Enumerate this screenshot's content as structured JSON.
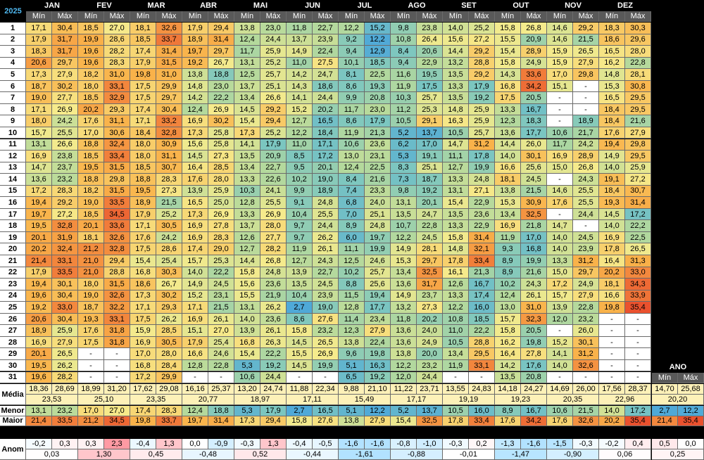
{
  "header": {
    "year": "2025",
    "months": [
      "JAN",
      "FEV",
      "MAR",
      "ABR",
      "MAI",
      "JUN",
      "JUL",
      "AGO",
      "SET",
      "OUT",
      "NOV",
      "DEZ"
    ],
    "sub": [
      "Mín",
      "Máx"
    ],
    "ano": "ANO"
  },
  "days": [
    "1",
    "2",
    "3",
    "4",
    "5",
    "6",
    "7",
    "8",
    "9",
    "10",
    "11",
    "12",
    "13",
    "14",
    "15",
    "16",
    "17",
    "18",
    "19",
    "20",
    "21",
    "22",
    "23",
    "24",
    "25",
    "26",
    "27",
    "28",
    "29",
    "30",
    "31"
  ],
  "rows": [
    [
      "17,1",
      "30,4",
      "18,5",
      "27,0",
      "18,1",
      "32,6",
      "17,9",
      "29,4",
      "13,8",
      "23,0",
      "11,8",
      "22,7",
      "12,2",
      "15,2",
      "9,8",
      "23,8",
      "14,0",
      "25,2",
      "15,8",
      "26,8",
      "14,6",
      "29,2",
      "18,3",
      "30,3"
    ],
    [
      "17,9",
      "31,7",
      "19,9",
      "28,6",
      "18,5",
      "33,7",
      "18,9",
      "31,4",
      "12,4",
      "24,4",
      "13,7",
      "23,9",
      "9,2",
      "12,2",
      "10,8",
      "26,4",
      "15,6",
      "27,2",
      "15,5",
      "20,9",
      "14,6",
      "21,5",
      "18,6",
      "29,6"
    ],
    [
      "18,3",
      "31,7",
      "19,6",
      "28,2",
      "17,4",
      "31,4",
      "19,7",
      "29,7",
      "11,7",
      "25,9",
      "14,9",
      "22,4",
      "9,4",
      "12,9",
      "8,4",
      "20,6",
      "14,4",
      "29,2",
      "15,4",
      "28,9",
      "15,9",
      "26,5",
      "16,5",
      "28,0"
    ],
    [
      "20,6",
      "29,7",
      "19,6",
      "28,3",
      "17,9",
      "31,5",
      "19,2",
      "26,7",
      "13,1",
      "25,2",
      "11,0",
      "27,5",
      "10,1",
      "18,5",
      "9,4",
      "22,9",
      "13,2",
      "28,8",
      "15,8",
      "24,9",
      "15,9",
      "27,9",
      "16,2",
      "22,8"
    ],
    [
      "17,3",
      "27,9",
      "18,2",
      "31,0",
      "19,8",
      "31,0",
      "13,8",
      "18,8",
      "12,5",
      "25,7",
      "14,2",
      "24,7",
      "8,1",
      "22,5",
      "11,6",
      "19,5",
      "13,5",
      "29,2",
      "14,3",
      "33,6",
      "17,0",
      "29,8",
      "14,8",
      "28,1"
    ],
    [
      "18,7",
      "30,2",
      "18,0",
      "33,1",
      "17,5",
      "29,9",
      "14,8",
      "23,0",
      "13,7",
      "25,1",
      "14,3",
      "18,6",
      "8,6",
      "19,3",
      "11,9",
      "17,5",
      "13,3",
      "17,9",
      "16,8",
      "34,2",
      "15,1",
      "-",
      "15,3",
      "30,8"
    ],
    [
      "19,0",
      "27,7",
      "18,5",
      "32,9",
      "17,5",
      "29,7",
      "14,2",
      "22,2",
      "13,4",
      "26,6",
      "14,1",
      "24,4",
      "9,9",
      "20,8",
      "10,3",
      "25,7",
      "13,5",
      "19,2",
      "17,5",
      "20,5",
      "-",
      "-",
      "16,5",
      "29,5"
    ],
    [
      "17,1",
      "26,9",
      "20,2",
      "29,3",
      "17,4",
      "30,4",
      "12,4",
      "26,9",
      "14,5",
      "29,2",
      "15,2",
      "20,2",
      "11,7",
      "23,0",
      "11,2",
      "25,3",
      "14,8",
      "25,9",
      "13,3",
      "16,7",
      "-",
      "-",
      "18,4",
      "29,5"
    ],
    [
      "18,0",
      "24,2",
      "17,6",
      "31,1",
      "17,1",
      "33,2",
      "16,9",
      "30,2",
      "15,4",
      "29,4",
      "12,7",
      "16,5",
      "8,6",
      "17,9",
      "10,5",
      "29,1",
      "16,3",
      "25,9",
      "12,3",
      "18,3",
      "-",
      "18,9",
      "18,4",
      "21,6"
    ],
    [
      "15,7",
      "25,5",
      "17,0",
      "30,6",
      "18,4",
      "32,8",
      "17,3",
      "25,8",
      "17,3",
      "25,2",
      "12,2",
      "18,4",
      "11,9",
      "21,3",
      "5,2",
      "13,7",
      "10,5",
      "25,7",
      "13,6",
      "17,7",
      "10,6",
      "21,7",
      "17,6",
      "27,9"
    ],
    [
      "13,1",
      "26,6",
      "18,8",
      "32,4",
      "18,0",
      "30,9",
      "15,6",
      "25,8",
      "14,1",
      "17,9",
      "11,0",
      "17,1",
      "10,6",
      "23,6",
      "6,2",
      "17,0",
      "14,7",
      "31,2",
      "14,4",
      "26,0",
      "11,7",
      "24,2",
      "19,4",
      "29,8"
    ],
    [
      "16,9",
      "23,8",
      "18,5",
      "33,4",
      "18,0",
      "31,1",
      "14,5",
      "27,3",
      "13,5",
      "20,9",
      "8,5",
      "17,2",
      "13,0",
      "23,1",
      "5,3",
      "19,1",
      "11,1",
      "17,8",
      "14,0",
      "30,1",
      "16,9",
      "28,9",
      "14,9",
      "29,5"
    ],
    [
      "14,7",
      "23,7",
      "19,5",
      "31,5",
      "18,5",
      "30,7",
      "16,4",
      "28,5",
      "13,4",
      "22,7",
      "9,5",
      "20,1",
      "12,4",
      "22,5",
      "8,3",
      "25,1",
      "12,7",
      "19,9",
      "16,6",
      "25,6",
      "15,0",
      "26,8",
      "14,0",
      "25,9"
    ],
    [
      "13,6",
      "23,2",
      "18,8",
      "29,8",
      "18,8",
      "28,3",
      "17,6",
      "28,0",
      "13,3",
      "22,6",
      "10,2",
      "19,0",
      "8,4",
      "21,6",
      "7,3",
      "18,7",
      "13,3",
      "24,8",
      "18,1",
      "24,5",
      "-",
      "24,3",
      "19,1",
      "27,2"
    ],
    [
      "17,2",
      "28,3",
      "18,2",
      "31,5",
      "19,5",
      "27,3",
      "13,9",
      "25,9",
      "10,3",
      "24,1",
      "9,9",
      "18,9",
      "7,4",
      "23,3",
      "9,8",
      "19,2",
      "13,1",
      "27,1",
      "13,8",
      "21,5",
      "14,6",
      "25,5",
      "18,4",
      "30,7"
    ],
    [
      "19,4",
      "29,2",
      "19,0",
      "33,5",
      "18,9",
      "21,5",
      "16,5",
      "25,0",
      "12,8",
      "25,5",
      "9,1",
      "24,8",
      "6,8",
      "24,0",
      "13,1",
      "20,1",
      "15,4",
      "22,9",
      "15,3",
      "30,9",
      "17,6",
      "25,5",
      "19,3",
      "31,4"
    ],
    [
      "19,7",
      "27,2",
      "18,5",
      "34,5",
      "17,9",
      "25,2",
      "17,3",
      "26,9",
      "13,3",
      "26,9",
      "10,4",
      "25,5",
      "7,0",
      "25,1",
      "13,5",
      "24,7",
      "13,5",
      "23,6",
      "13,4",
      "32,5",
      "-",
      "24,4",
      "14,5",
      "17,2"
    ],
    [
      "19,5",
      "32,8",
      "20,1",
      "33,6",
      "17,1",
      "30,5",
      "16,9",
      "27,8",
      "13,7",
      "28,0",
      "9,7",
      "24,4",
      "8,9",
      "24,8",
      "10,7",
      "22,8",
      "13,3",
      "22,9",
      "16,9",
      "21,8",
      "14,7",
      "-",
      "14,0",
      "22,2"
    ],
    [
      "20,1",
      "31,9",
      "18,1",
      "32,6",
      "17,6",
      "24,2",
      "16,9",
      "28,3",
      "12,6",
      "27,7",
      "9,7",
      "26,2",
      "6,0",
      "19,7",
      "12,2",
      "24,5",
      "15,8",
      "31,4",
      "11,9",
      "17,0",
      "14,0",
      "24,5",
      "16,9",
      "22,5"
    ],
    [
      "20,2",
      "32,4",
      "21,2",
      "32,8",
      "17,5",
      "28,6",
      "17,4",
      "29,0",
      "12,7",
      "28,2",
      "11,9",
      "26,1",
      "11,1",
      "19,9",
      "14,9",
      "28,1",
      "14,8",
      "32,1",
      "9,3",
      "16,8",
      "14,0",
      "23,9",
      "17,8",
      "26,5"
    ],
    [
      "21,4",
      "33,1",
      "21,0",
      "29,4",
      "15,4",
      "25,4",
      "15,7",
      "25,3",
      "14,4",
      "26,8",
      "12,7",
      "24,3",
      "12,5",
      "24,6",
      "15,3",
      "29,7",
      "17,8",
      "33,4",
      "8,9",
      "19,9",
      "13,3",
      "31,2",
      "16,4",
      "31,3"
    ],
    [
      "17,9",
      "33,5",
      "21,0",
      "28,8",
      "16,8",
      "30,3",
      "14,0",
      "22,2",
      "15,8",
      "24,8",
      "13,9",
      "22,7",
      "10,2",
      "25,7",
      "13,4",
      "32,5",
      "16,1",
      "21,3",
      "8,9",
      "21,6",
      "15,0",
      "29,7",
      "20,2",
      "33,0"
    ],
    [
      "19,4",
      "30,1",
      "18,0",
      "31,5",
      "18,6",
      "26,7",
      "14,9",
      "24,5",
      "15,6",
      "23,6",
      "13,5",
      "24,5",
      "8,8",
      "25,6",
      "13,6",
      "31,7",
      "12,6",
      "16,7",
      "10,2",
      "24,3",
      "17,2",
      "24,9",
      "18,1",
      "34,3"
    ],
    [
      "19,6",
      "30,4",
      "19,0",
      "32,6",
      "17,3",
      "30,2",
      "15,2",
      "23,1",
      "15,5",
      "21,9",
      "10,4",
      "23,9",
      "11,5",
      "19,4",
      "14,9",
      "23,7",
      "13,3",
      "17,4",
      "12,4",
      "26,1",
      "15,7",
      "27,9",
      "16,6",
      "33,9"
    ],
    [
      "19,2",
      "33,0",
      "18,7",
      "32,2",
      "17,1",
      "29,3",
      "17,1",
      "21,5",
      "13,1",
      "26,2",
      "2,7",
      "19,0",
      "12,8",
      "17,7",
      "13,2",
      "27,3",
      "12,2",
      "16,0",
      "13,0",
      "31,0",
      "13,9",
      "22,8",
      "19,8",
      "35,4"
    ],
    [
      "20,6",
      "30,4",
      "19,3",
      "33,1",
      "17,5",
      "26,2",
      "16,9",
      "26,1",
      "14,0",
      "23,6",
      "8,6",
      "27,6",
      "11,4",
      "23,4",
      "11,8",
      "20,2",
      "10,8",
      "18,5",
      "15,7",
      "32,3",
      "12,0",
      "23,2",
      "-",
      "-"
    ],
    [
      "18,9",
      "25,9",
      "17,6",
      "31,8",
      "15,9",
      "28,5",
      "15,1",
      "27,0",
      "13,9",
      "26,1",
      "15,8",
      "23,2",
      "12,3",
      "27,9",
      "13,6",
      "24,0",
      "11,0",
      "22,2",
      "15,8",
      "20,5",
      "-",
      "26,0",
      "-",
      "-"
    ],
    [
      "16,9",
      "27,9",
      "17,5",
      "31,8",
      "16,9",
      "30,5",
      "17,9",
      "25,4",
      "16,8",
      "26,3",
      "14,5",
      "26,5",
      "13,8",
      "22,4",
      "13,6",
      "24,9",
      "10,5",
      "28,8",
      "16,2",
      "19,8",
      "15,2",
      "30,1",
      "-",
      "-"
    ],
    [
      "20,1",
      "26,5",
      "-",
      "-",
      "17,0",
      "28,0",
      "16,6",
      "24,6",
      "15,4",
      "22,2",
      "15,5",
      "26,9",
      "9,6",
      "19,8",
      "13,8",
      "20,0",
      "13,4",
      "29,5",
      "16,4",
      "27,8",
      "14,1",
      "31,2",
      "-",
      "-"
    ],
    [
      "19,5",
      "26,2",
      "-",
      "-",
      "16,8",
      "28,4",
      "12,8",
      "22,8",
      "5,3",
      "19,2",
      "14,5",
      "19,9",
      "5,1",
      "16,3",
      "12,2",
      "23,2",
      "11,9",
      "33,1",
      "14,2",
      "17,6",
      "14,0",
      "32,6",
      "-",
      "-"
    ],
    [
      "19,6",
      "28,2",
      "-",
      "-",
      "17,2",
      "29,9",
      "-",
      "-",
      "10,6",
      "24,4",
      "-",
      "-",
      "6,5",
      "19,2",
      "12,0",
      "24,4",
      "-",
      "-",
      "13,5",
      "20,8",
      "-",
      "-",
      "-",
      "-"
    ]
  ],
  "media": {
    "label": "Média",
    "values": [
      "18,36",
      "28,69",
      "18,99",
      "31,20",
      "17,62",
      "29,08",
      "16,16",
      "25,37",
      "13,20",
      "24,74",
      "11,88",
      "22,34",
      "9,88",
      "21,10",
      "11,22",
      "23,71",
      "13,55",
      "24,83",
      "14,18",
      "24,27",
      "14,69",
      "26,00",
      "17,56",
      "28,37",
      "14,70",
      "25,68"
    ],
    "avg": [
      "23,53",
      "25,10",
      "23,35",
      "20,77",
      "18,97",
      "17,11",
      "15,49",
      "17,17",
      "19,19",
      "19,23",
      "20,35",
      "22,96",
      "20,20"
    ]
  },
  "menor": {
    "label": "Menor",
    "values": [
      "13,1",
      "23,2",
      "17,0",
      "27,0",
      "17,4",
      "28,3",
      "12,4",
      "18,8",
      "5,3",
      "17,9",
      "2,7",
      "16,5",
      "5,1",
      "12,2",
      "5,2",
      "13,7",
      "10,5",
      "16,0",
      "8,9",
      "16,7",
      "10,6",
      "21,5",
      "14,0",
      "17,2",
      "2,7",
      "12,2"
    ]
  },
  "maior": {
    "label": "Maior",
    "values": [
      "21,4",
      "33,5",
      "21,2",
      "34,5",
      "19,8",
      "33,7",
      "19,7",
      "31,4",
      "17,3",
      "29,4",
      "15,8",
      "27,6",
      "13,8",
      "27,9",
      "15,4",
      "32,5",
      "17,8",
      "33,4",
      "17,6",
      "34,2",
      "17,6",
      "32,6",
      "20,2",
      "35,4",
      "21,4",
      "35,4"
    ]
  },
  "anom": {
    "label": "Anom",
    "values": [
      "-0,2",
      "0,3",
      "0,3",
      "2,3",
      "-0,4",
      "1,3",
      "0,0",
      "-0,9",
      "-0,3",
      "1,3",
      "-0,4",
      "-0,5",
      "-1,6",
      "-1,6",
      "-0,8",
      "-1,0",
      "-0,3",
      "0,2",
      "-1,3",
      "-1,6",
      "-1,5",
      "-0,3",
      "-0,2",
      "0,4",
      "0,5",
      "0,0"
    ],
    "avg": [
      "0,03",
      "1,30",
      "0,45",
      "-0,48",
      "0,52",
      "-0,44",
      "-1,61",
      "-0,88",
      "-0,01",
      "-1,47",
      "-0,90",
      "0,06",
      "0,25"
    ]
  }
}
